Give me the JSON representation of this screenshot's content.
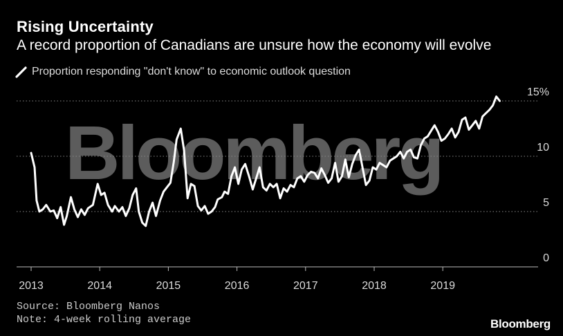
{
  "header": {
    "title": "Rising Uncertainty",
    "subtitle": "A record proportion of Canadians are unsure how the economy will evolve"
  },
  "legend": {
    "label": "Proportion responding \"don't know\" to economic outlook question"
  },
  "watermark": "Bloomberg",
  "footer": {
    "source": "Source: Bloomberg Nanos",
    "note": "Note: 4-week rolling average",
    "brand": "Bloomberg"
  },
  "colors": {
    "background": "#000000",
    "line": "#ffffff",
    "grid": "#8a8a8a",
    "watermark": "#5c5c5c"
  },
  "chart_data": {
    "type": "line",
    "title": "Rising Uncertainty",
    "subtitle": "A record proportion of Canadians are unsure how the economy will evolve",
    "xlabel": "",
    "ylabel": "",
    "ylim": [
      0,
      15
    ],
    "xlim": [
      2013.0,
      2019.9
    ],
    "y_ticks": [
      0,
      5,
      10,
      15
    ],
    "y_tick_labels": [
      "0",
      "5",
      "10",
      "15%"
    ],
    "x_ticks": [
      2013,
      2014,
      2015,
      2016,
      2017,
      2018,
      2019
    ],
    "x_tick_labels": [
      "2013",
      "2014",
      "2015",
      "2016",
      "2017",
      "2018",
      "2019"
    ],
    "grid": "horizontal dotted",
    "legend_position": "top-left",
    "series": [
      {
        "name": "Proportion responding \"don't know\" to economic outlook question",
        "x": [
          2013.0,
          2013.05,
          2013.08,
          2013.12,
          2013.17,
          2013.22,
          2013.28,
          2013.33,
          2013.38,
          2013.43,
          2013.48,
          2013.52,
          2013.58,
          2013.63,
          2013.68,
          2013.73,
          2013.78,
          2013.83,
          2013.9,
          2013.97,
          2014.02,
          2014.07,
          2014.12,
          2014.18,
          2014.22,
          2014.28,
          2014.33,
          2014.38,
          2014.43,
          2014.48,
          2014.53,
          2014.57,
          2014.62,
          2014.67,
          2014.72,
          2014.77,
          2014.82,
          2014.88,
          2014.93,
          2014.98,
          2015.03,
          2015.08,
          2015.12,
          2015.18,
          2015.23,
          2015.28,
          2015.33,
          2015.38,
          2015.43,
          2015.48,
          2015.53,
          2015.58,
          2015.63,
          2015.68,
          2015.72,
          2015.78,
          2015.82,
          2015.87,
          2015.92,
          2015.97,
          2016.02,
          2016.07,
          2016.12,
          2016.18,
          2016.23,
          2016.28,
          2016.33,
          2016.38,
          2016.43,
          2016.48,
          2016.53,
          2016.58,
          2016.63,
          2016.68,
          2016.73,
          2016.78,
          2016.83,
          2016.88,
          2016.93,
          2016.98,
          2017.03,
          2017.08,
          2017.13,
          2017.18,
          2017.23,
          2017.28,
          2017.33,
          2017.38,
          2017.43,
          2017.48,
          2017.53,
          2017.58,
          2017.63,
          2017.68,
          2017.73,
          2017.78,
          2017.83,
          2017.88,
          2017.93,
          2017.98,
          2018.03,
          2018.08,
          2018.13,
          2018.18,
          2018.23,
          2018.28,
          2018.33,
          2018.38,
          2018.43,
          2018.48,
          2018.53,
          2018.58,
          2018.63,
          2018.68,
          2018.73,
          2018.78,
          2018.83,
          2018.88,
          2018.93,
          2018.98,
          2019.03,
          2019.08,
          2019.13,
          2019.18,
          2019.23,
          2019.28,
          2019.33,
          2019.38,
          2019.43,
          2019.48,
          2019.53,
          2019.58,
          2019.63,
          2019.68,
          2019.73,
          2019.78,
          2019.83
        ],
        "values": [
          10.3,
          9.0,
          6.0,
          5.0,
          5.2,
          5.6,
          5.0,
          5.1,
          4.4,
          5.4,
          3.8,
          4.6,
          6.3,
          5.2,
          4.5,
          5.2,
          4.7,
          5.3,
          5.6,
          7.5,
          6.5,
          6.7,
          5.6,
          5.0,
          5.5,
          5.0,
          5.4,
          4.6,
          5.3,
          6.5,
          7.1,
          5.0,
          4.0,
          3.7,
          5.0,
          5.8,
          4.6,
          6.0,
          6.8,
          7.2,
          7.6,
          9.5,
          11.5,
          12.5,
          10.5,
          6.2,
          7.5,
          7.3,
          5.5,
          5.1,
          5.5,
          4.8,
          5.0,
          5.4,
          6.1,
          6.3,
          6.8,
          6.6,
          8.2,
          9.0,
          7.5,
          8.8,
          9.3,
          8.1,
          7.0,
          8.0,
          9.0,
          7.2,
          6.9,
          7.5,
          7.2,
          7.5,
          6.2,
          7.1,
          6.8,
          7.4,
          7.2,
          8.0,
          8.2,
          7.7,
          8.3,
          8.6,
          8.5,
          8.0,
          8.9,
          8.3,
          7.6,
          8.0,
          9.4,
          7.7,
          8.2,
          9.7,
          8.1,
          9.3,
          10.1,
          10.6,
          9.0,
          7.4,
          7.8,
          9.0,
          8.8,
          9.4,
          9.2,
          9.0,
          9.6,
          9.8,
          10.0,
          10.4,
          9.8,
          10.4,
          10.6,
          9.9,
          9.8,
          11.0,
          11.6,
          11.8,
          12.3,
          12.8,
          12.2,
          11.4,
          11.6,
          12.0,
          12.5,
          11.7,
          12.2,
          13.3,
          13.5,
          12.4,
          12.8,
          13.2,
          12.5,
          13.6,
          13.9,
          14.2,
          14.6,
          15.4,
          15.0
        ]
      }
    ]
  }
}
